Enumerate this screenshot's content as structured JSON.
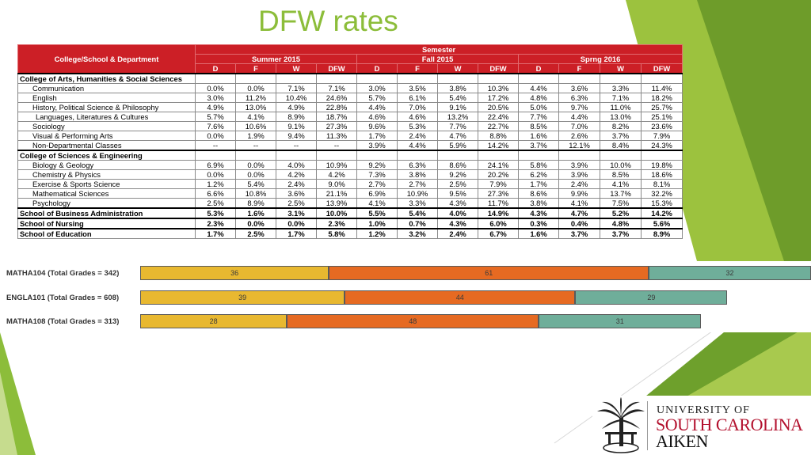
{
  "slide": {
    "title": "DFW rates"
  },
  "table": {
    "corner_header": "College/School & Department",
    "group_header": "Semester",
    "semesters": [
      "Summer 2015",
      "Fall 2015",
      "Sprng 2016"
    ],
    "metrics": [
      "D",
      "F",
      "W",
      "DFW"
    ],
    "rows": [
      {
        "label": "College of Arts, Humanities & Social Sciences",
        "kind": "section",
        "values": [
          "",
          "",
          "",
          "",
          "",
          "",
          "",
          "",
          "",
          "",
          "",
          ""
        ]
      },
      {
        "label": "Communication",
        "kind": "sub",
        "values": [
          "0.0%",
          "0.0%",
          "7.1%",
          "7.1%",
          "3.0%",
          "3.5%",
          "3.8%",
          "10.3%",
          "4.4%",
          "3.6%",
          "3.3%",
          "11.4%"
        ]
      },
      {
        "label": "English",
        "kind": "sub",
        "values": [
          "3.0%",
          "11.2%",
          "10.4%",
          "24.6%",
          "5.7%",
          "6.1%",
          "5.4%",
          "17.2%",
          "4.8%",
          "6.3%",
          "7.1%",
          "18.2%"
        ]
      },
      {
        "label": "History, Political Science & Philosophy",
        "kind": "sub",
        "values": [
          "4.9%",
          "13.0%",
          "4.9%",
          "22.8%",
          "4.4%",
          "7.0%",
          "9.1%",
          "20.5%",
          "5.0%",
          "9.7%",
          "11.0%",
          "25.7%"
        ]
      },
      {
        "label": "Languages, Literatures & Cultures",
        "kind": "sub2",
        "values": [
          "5.7%",
          "4.1%",
          "8.9%",
          "18.7%",
          "4.6%",
          "4.6%",
          "13.2%",
          "22.4%",
          "7.7%",
          "4.4%",
          "13.0%",
          "25.1%"
        ]
      },
      {
        "label": "Sociology",
        "kind": "sub",
        "values": [
          "7.6%",
          "10.6%",
          "9.1%",
          "27.3%",
          "9.6%",
          "5.3%",
          "7.7%",
          "22.7%",
          "8.5%",
          "7.0%",
          "8.2%",
          "23.6%"
        ]
      },
      {
        "label": "Visual & Performing Arts",
        "kind": "sub",
        "values": [
          "0.0%",
          "1.9%",
          "9.4%",
          "11.3%",
          "1.7%",
          "2.4%",
          "4.7%",
          "8.8%",
          "1.6%",
          "2.6%",
          "3.7%",
          "7.9%"
        ]
      },
      {
        "label": "Non-Departmental Classes",
        "kind": "sub",
        "values": [
          "--",
          "--",
          "--",
          "--",
          "3.9%",
          "4.4%",
          "5.9%",
          "14.2%",
          "3.7%",
          "12.1%",
          "8.4%",
          "24.3%"
        ]
      },
      {
        "label": "College of Sciences & Engineering",
        "kind": "section",
        "values": [
          "",
          "",
          "",
          "",
          "",
          "",
          "",
          "",
          "",
          "",
          "",
          ""
        ]
      },
      {
        "label": "Biology & Geology",
        "kind": "sub",
        "values": [
          "6.9%",
          "0.0%",
          "4.0%",
          "10.9%",
          "9.2%",
          "6.3%",
          "8.6%",
          "24.1%",
          "5.8%",
          "3.9%",
          "10.0%",
          "19.8%"
        ]
      },
      {
        "label": "Chemistry & Physics",
        "kind": "sub",
        "values": [
          "0.0%",
          "0.0%",
          "4.2%",
          "4.2%",
          "7.3%",
          "3.8%",
          "9.2%",
          "20.2%",
          "6.2%",
          "3.9%",
          "8.5%",
          "18.6%"
        ]
      },
      {
        "label": "Exercise & Sports Science",
        "kind": "sub",
        "values": [
          "1.2%",
          "5.4%",
          "2.4%",
          "9.0%",
          "2.7%",
          "2.7%",
          "2.5%",
          "7.9%",
          "1.7%",
          "2.4%",
          "4.1%",
          "8.1%"
        ]
      },
      {
        "label": "Mathematical Sciences",
        "kind": "sub",
        "values": [
          "6.6%",
          "10.8%",
          "3.6%",
          "21.1%",
          "6.9%",
          "10.9%",
          "9.5%",
          "27.3%",
          "8.6%",
          "9.9%",
          "13.7%",
          "32.2%"
        ]
      },
      {
        "label": "Psychology",
        "kind": "sub",
        "values": [
          "2.5%",
          "8.9%",
          "2.5%",
          "13.9%",
          "4.1%",
          "3.3%",
          "4.3%",
          "11.7%",
          "3.8%",
          "4.1%",
          "7.5%",
          "15.3%"
        ]
      },
      {
        "label": "School of Business Administration",
        "kind": "school",
        "values": [
          "5.3%",
          "1.6%",
          "3.1%",
          "10.0%",
          "5.5%",
          "5.4%",
          "4.0%",
          "14.9%",
          "4.3%",
          "4.7%",
          "5.2%",
          "14.2%"
        ]
      },
      {
        "label": "School of Nursing",
        "kind": "school",
        "values": [
          "2.3%",
          "0.0%",
          "0.0%",
          "2.3%",
          "1.0%",
          "0.7%",
          "4.3%",
          "6.0%",
          "0.3%",
          "0.4%",
          "4.8%",
          "5.6%"
        ]
      },
      {
        "label": "School of Education",
        "kind": "school",
        "values": [
          "1.7%",
          "2.5%",
          "1.7%",
          "5.8%",
          "1.2%",
          "3.2%",
          "2.4%",
          "6.7%",
          "1.6%",
          "3.7%",
          "3.7%",
          "8.9%"
        ]
      }
    ]
  },
  "chart_data": {
    "type": "bar",
    "stacked": true,
    "orientation": "horizontal",
    "categories": [
      "MATHA104 (Total Grades = 342)",
      "ENGLA101 (Total Grades = 608)",
      "MATHA108 (Total Grades = 313)"
    ],
    "series": [
      {
        "color": "#e8b830",
        "values": [
          36,
          39,
          28
        ]
      },
      {
        "color": "#e66a22",
        "values": [
          61,
          44,
          48
        ]
      },
      {
        "color": "#6fae9a",
        "values": [
          32,
          29,
          31
        ]
      }
    ],
    "grid": false,
    "legend": "none"
  },
  "branding": {
    "line1": "UNIVERSITY OF",
    "line2": "SOUTH CAROLINA",
    "line3": "AIKEN",
    "palmetto_icon": "palmetto-seal-icon",
    "brand_red": "#b3112e",
    "accent_green": "#8cbd3a",
    "table_header_red": "#cc1f26"
  }
}
